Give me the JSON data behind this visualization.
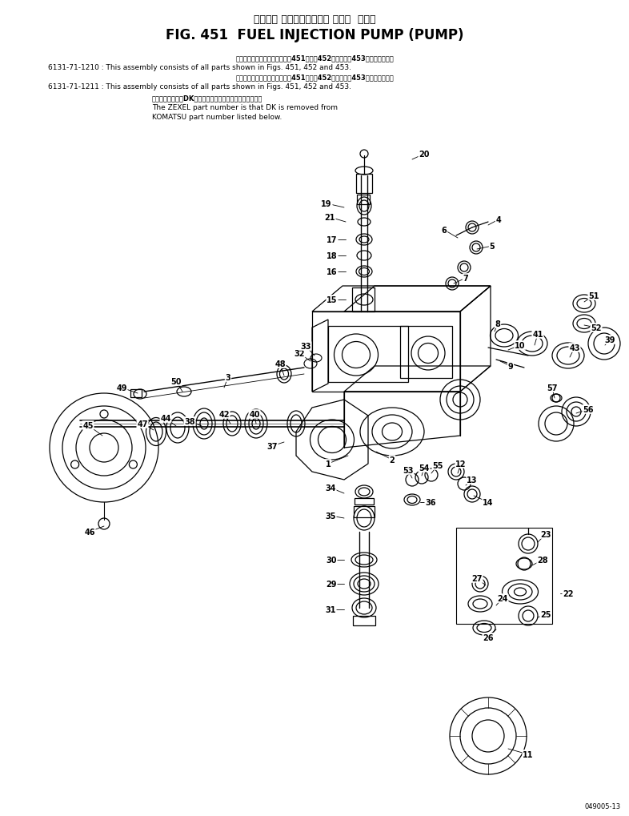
{
  "title_japanese": "フェエル インジェクション ポンプ  ポンプ",
  "title_english": "FIG. 451  FUEL INJECTION PUMP (PUMP)",
  "bg_color": "#ffffff",
  "text_color": "#000000",
  "figure_number": "049005-13"
}
